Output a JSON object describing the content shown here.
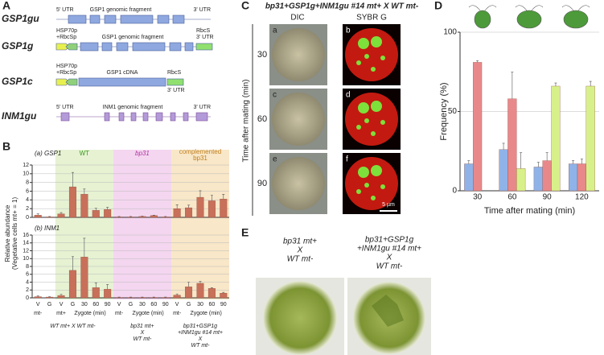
{
  "panel_a": {
    "label": "A",
    "constructs": [
      {
        "name": "GSP1gu",
        "left": "5' UTR",
        "middle": "GSP1 genomic fragment",
        "right": "3' UTR"
      },
      {
        "name": "GSP1g",
        "left": [
          "HSP70p",
          "+RbcSp"
        ],
        "middle": "GSP1 genomic fragment",
        "right": [
          "RbcS",
          "3' UTR"
        ]
      },
      {
        "name": "GSP1c",
        "left": [
          "HSP70p",
          "+RbcSp"
        ],
        "middle": "GSP1 cDNA",
        "right": [
          "RbcS",
          "3' UTR"
        ]
      },
      {
        "name": "INM1gu",
        "left": "5' UTR",
        "middle": "INM1 genomic fragment",
        "right": "3' UTR"
      }
    ]
  },
  "panel_b": {
    "label": "B",
    "y_label": [
      "Relative abundance",
      "(Vegetative cells mt+ = 1)"
    ],
    "groups": [
      "WT",
      "bp31",
      [
        "complemented",
        "bp31"
      ]
    ],
    "x_groups": [
      "mt-",
      "mt+",
      "Zygote (min)",
      "mt-",
      "Zygote (min)",
      "mt-",
      "Zygote (min)"
    ],
    "strains": [
      [
        "WT mt+ X WT mt-"
      ],
      [
        "bp31 mt+",
        "X",
        "WT mt-"
      ],
      [
        "bp31+GSP1g",
        "+INM1gu #14 mt+",
        "X",
        "WT mt-"
      ]
    ]
  },
  "panel_c": {
    "label": "C",
    "title": "bp31+GSP1g+INM1gu #14 mt+ X WT mt-",
    "columns": [
      "DIC",
      "SYBR G"
    ],
    "y_label": "Time after mating (min)",
    "rows": [
      30,
      60,
      90
    ],
    "letters": [
      "a",
      "b",
      "c",
      "d",
      "e",
      "f"
    ],
    "scale": "5 µm"
  },
  "panel_d": {
    "label": "D"
  },
  "panel_e": {
    "label": "E",
    "captions": [
      [
        "bp31 mt+",
        "X",
        "WT mt-"
      ],
      [
        "bp31+GSP1g",
        "+INM1gu #14 mt+",
        "X",
        "WT mt-"
      ]
    ]
  },
  "chart_data": [
    {
      "type": "bar",
      "subtitle": "(a) GSP1",
      "ylim": [
        0,
        12
      ],
      "yticks": [
        0,
        2,
        4,
        6,
        8,
        10,
        12
      ],
      "grid": true,
      "series": [
        {
          "color": "#c8705a",
          "values": [
            0.5,
            0.1,
            0.8,
            7.0,
            5.3,
            1.6,
            1.8,
            0.1,
            0.1,
            0.2,
            0.4,
            0.1,
            2.0,
            2.2,
            4.6,
            3.8,
            4.2
          ],
          "errors": [
            0.3,
            0.1,
            0.3,
            3.3,
            1.2,
            0.5,
            0.5,
            0.1,
            0.1,
            0.1,
            0.1,
            0.1,
            0.9,
            0.6,
            1.5,
            1.3,
            1.1
          ]
        }
      ]
    },
    {
      "type": "bar",
      "subtitle": "(b) INM1",
      "ylim": [
        0,
        16
      ],
      "yticks": [
        0,
        2,
        4,
        6,
        8,
        10,
        12,
        14,
        16
      ],
      "grid": true,
      "categories": [
        "V",
        "G",
        "V",
        "G",
        30,
        60,
        90,
        "V",
        "G",
        30,
        60,
        90,
        "V",
        "G",
        30,
        60,
        90
      ],
      "series": [
        {
          "color": "#c8705a",
          "values": [
            0.3,
            0.2,
            0.6,
            7.0,
            10.4,
            2.6,
            2.2,
            0.1,
            0.1,
            0.1,
            0.1,
            0.1,
            0.7,
            2.8,
            3.7,
            2.4,
            1.2
          ],
          "errors": [
            0.2,
            0.1,
            0.3,
            3.5,
            4.8,
            1.2,
            1.2,
            0.1,
            0.1,
            0.1,
            0.1,
            0.1,
            0.3,
            1.2,
            0.5,
            0.2,
            0.2
          ]
        }
      ]
    },
    {
      "type": "bar",
      "x_label": "Time after mating (min)",
      "y_label": "Frequency (%)",
      "categories": [
        30,
        60,
        90,
        120
      ],
      "ylim": [
        0,
        100
      ],
      "yticks": [
        0,
        50,
        100
      ],
      "grid": true,
      "series": [
        {
          "color": "#8fb3e8",
          "values": [
            17,
            26,
            15,
            17
          ],
          "errors": [
            2,
            4,
            3,
            2
          ]
        },
        {
          "color": "#e8888a",
          "values": [
            81,
            58,
            19,
            17
          ],
          "errors": [
            1,
            17,
            5,
            3
          ]
        },
        {
          "color": "#d8f08a",
          "values": [
            0,
            14,
            66,
            66
          ],
          "errors": [
            null,
            10,
            2,
            3
          ]
        }
      ]
    }
  ]
}
